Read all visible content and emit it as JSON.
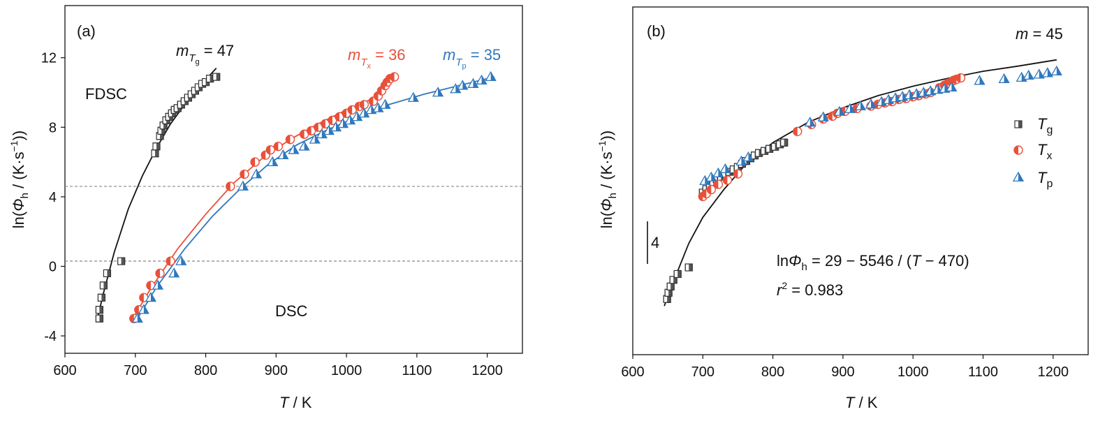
{
  "panels": {
    "a": {
      "label": "(a)",
      "xlabel_sym": "T",
      "xlabel_unit": " / K",
      "ylabel_pre": "ln(",
      "ylabel_sym": "Φ",
      "ylabel_sub": "h",
      "ylabel_unit": " / (K·s",
      "ylabel_exp": "−1",
      "ylabel_close": "))",
      "fdsc": "FDSC",
      "dsc": "DSC",
      "m_g_sym": "m",
      "m_g_sub": "T",
      "m_g_subsub": "g",
      "m_g_val": " = 47",
      "m_x_sym": "m",
      "m_x_sub": "T",
      "m_x_subsub": "x",
      "m_x_val": " = 36",
      "m_p_sym": "m",
      "m_p_sub": "T",
      "m_p_subsub": "p",
      "m_p_val": " = 35"
    },
    "b": {
      "label": "(b)",
      "xlabel_sym": "T",
      "xlabel_unit": " / K",
      "ylabel_pre": "ln(",
      "ylabel_sym": "Φ",
      "ylabel_sub": "h",
      "ylabel_unit": " / (K·s",
      "ylabel_exp": "−1",
      "ylabel_close": "))",
      "m_sym": "m",
      "m_val": " = 45",
      "scale_bar": "4",
      "eq_pre": "ln",
      "eq_sym": "Φ",
      "eq_sub": "h",
      "eq_rest": " = 29 − 5546 / (",
      "eq_t": "T",
      "eq_end": " − 470)",
      "r2_sym": "r",
      "r2_exp": "2",
      "r2_val": " = 0.983",
      "legend": [
        {
          "sym": "T",
          "sub": "g"
        },
        {
          "sym": "T",
          "sub": "x"
        },
        {
          "sym": "T",
          "sub": "p"
        }
      ]
    }
  },
  "colors": {
    "Tg": "#555555",
    "Tx": "#e8503a",
    "Tp": "#2f78bd"
  },
  "chart_data": [
    {
      "type": "scatter",
      "xlabel": "T / K",
      "ylabel": "ln(Φh / (K·s−1))",
      "xlim": [
        600,
        1250
      ],
      "ylim": [
        -5,
        15
      ],
      "xticks": [
        600,
        700,
        800,
        900,
        1000,
        1100,
        1200
      ],
      "yticks": [
        -4,
        0,
        4,
        8,
        12
      ],
      "reference_lines_y": [
        4.6,
        0.3
      ],
      "series": [
        {
          "name": "Tg",
          "points": [
            [
              649,
              -3.0
            ],
            [
              649,
              -2.5
            ],
            [
              652,
              -1.8
            ],
            [
              655,
              -1.1
            ],
            [
              660,
              -0.4
            ],
            [
              680,
              0.3
            ],
            [
              728,
              6.5
            ],
            [
              730,
              6.9
            ],
            [
              735,
              7.5
            ],
            [
              737,
              7.8
            ],
            [
              740,
              8.1
            ],
            [
              744,
              8.4
            ],
            [
              748,
              8.6
            ],
            [
              752,
              8.8
            ],
            [
              756,
              9.0
            ],
            [
              760,
              9.1
            ],
            [
              765,
              9.3
            ],
            [
              770,
              9.5
            ],
            [
              775,
              9.7
            ],
            [
              780,
              9.9
            ],
            [
              785,
              10.1
            ],
            [
              790,
              10.3
            ],
            [
              795,
              10.5
            ],
            [
              800,
              10.6
            ],
            [
              806,
              10.8
            ],
            [
              815,
              10.9
            ]
          ],
          "fit": [
            [
              645,
              -3.2
            ],
            [
              655,
              -1.5
            ],
            [
              670,
              0.8
            ],
            [
              690,
              3.3
            ],
            [
              710,
              5.2
            ],
            [
              730,
              6.8
            ],
            [
              750,
              8.2
            ],
            [
              770,
              9.3
            ],
            [
              790,
              10.3
            ],
            [
              815,
              11.4
            ]
          ]
        },
        {
          "name": "Tx",
          "points": [
            [
              698,
              -3.0
            ],
            [
              705,
              -2.5
            ],
            [
              712,
              -1.8
            ],
            [
              722,
              -1.1
            ],
            [
              735,
              -0.4
            ],
            [
              750,
              0.3
            ],
            [
              835,
              4.6
            ],
            [
              855,
              5.3
            ],
            [
              870,
              6.0
            ],
            [
              885,
              6.4
            ],
            [
              892,
              6.7
            ],
            [
              903,
              6.9
            ],
            [
              920,
              7.3
            ],
            [
              940,
              7.6
            ],
            [
              950,
              7.8
            ],
            [
              960,
              8.0
            ],
            [
              970,
              8.2
            ],
            [
              980,
              8.4
            ],
            [
              990,
              8.6
            ],
            [
              1000,
              8.8
            ],
            [
              1008,
              9.0
            ],
            [
              1018,
              9.2
            ],
            [
              1025,
              9.3
            ],
            [
              1038,
              9.5
            ],
            [
              1045,
              9.8
            ],
            [
              1050,
              10.1
            ],
            [
              1055,
              10.4
            ],
            [
              1058,
              10.6
            ],
            [
              1062,
              10.8
            ],
            [
              1068,
              10.9
            ]
          ],
          "fit": [
            [
              695,
              -3.1
            ],
            [
              720,
              -1.4
            ],
            [
              760,
              1.0
            ],
            [
              800,
              3.0
            ],
            [
              840,
              4.8
            ],
            [
              880,
              6.2
            ],
            [
              920,
              7.3
            ],
            [
              960,
              8.2
            ],
            [
              1000,
              9.0
            ],
            [
              1040,
              9.7
            ],
            [
              1060,
              10.8
            ]
          ]
        },
        {
          "name": "Tp",
          "points": [
            [
              703,
              -3.0
            ],
            [
              712,
              -2.5
            ],
            [
              722,
              -1.8
            ],
            [
              732,
              -1.1
            ],
            [
              755,
              -0.4
            ],
            [
              765,
              0.3
            ],
            [
              853,
              4.6
            ],
            [
              872,
              5.3
            ],
            [
              895,
              6.0
            ],
            [
              910,
              6.4
            ],
            [
              925,
              6.7
            ],
            [
              940,
              6.9
            ],
            [
              955,
              7.3
            ],
            [
              965,
              7.6
            ],
            [
              975,
              7.8
            ],
            [
              985,
              8.0
            ],
            [
              995,
              8.2
            ],
            [
              1005,
              8.4
            ],
            [
              1015,
              8.6
            ],
            [
              1025,
              8.8
            ],
            [
              1035,
              9.0
            ],
            [
              1045,
              9.1
            ],
            [
              1055,
              9.3
            ],
            [
              1095,
              9.7
            ],
            [
              1130,
              10.0
            ],
            [
              1155,
              10.2
            ],
            [
              1165,
              10.4
            ],
            [
              1180,
              10.5
            ],
            [
              1192,
              10.7
            ],
            [
              1205,
              10.9
            ]
          ],
          "fit": [
            [
              700,
              -3.2
            ],
            [
              730,
              -1.2
            ],
            [
              770,
              1.0
            ],
            [
              810,
              2.9
            ],
            [
              850,
              4.5
            ],
            [
              890,
              5.9
            ],
            [
              930,
              7.0
            ],
            [
              970,
              7.8
            ],
            [
              1010,
              8.5
            ],
            [
              1060,
              9.3
            ],
            [
              1110,
              9.9
            ],
            [
              1160,
              10.4
            ],
            [
              1210,
              10.9
            ]
          ]
        }
      ]
    },
    {
      "type": "scatter",
      "xlabel": "T / K",
      "ylabel": "ln(Φh / (K·s−1))",
      "xlim": [
        600,
        1250
      ],
      "ylim": [
        0,
        1
      ],
      "xticks": [
        600,
        700,
        800,
        900,
        1000,
        1100,
        1200
      ],
      "yticks": [],
      "fit_equation": "lnΦh = 29 − 5546 / (T − 470)",
      "r2": 0.983,
      "m": 45,
      "series": [
        {
          "name": "Tg",
          "points": [
            [
              649,
              0.16
            ],
            [
              651,
              0.178
            ],
            [
              654,
              0.196
            ],
            [
              658,
              0.215
            ],
            [
              664,
              0.232
            ],
            [
              680,
              0.251
            ],
            [
              700,
              0.466
            ],
            [
              705,
              0.476
            ],
            [
              710,
              0.488
            ],
            [
              715,
              0.497
            ],
            [
              720,
              0.505
            ],
            [
              726,
              0.512
            ],
            [
              732,
              0.519
            ],
            [
              738,
              0.526
            ],
            [
              744,
              0.533
            ],
            [
              750,
              0.54
            ],
            [
              756,
              0.549
            ],
            [
              762,
              0.557
            ],
            [
              768,
              0.565
            ],
            [
              774,
              0.573
            ],
            [
              780,
              0.58
            ],
            [
              788,
              0.586
            ],
            [
              795,
              0.592
            ],
            [
              803,
              0.598
            ],
            [
              810,
              0.605
            ],
            [
              816,
              0.61
            ]
          ],
          "fit": [
            [
              645,
              0.14
            ],
            [
              660,
              0.22
            ],
            [
              680,
              0.32
            ],
            [
              700,
              0.395
            ],
            [
              730,
              0.475
            ],
            [
              760,
              0.545
            ],
            [
              800,
              0.61
            ],
            [
              850,
              0.668
            ],
            [
              900,
              0.71
            ],
            [
              950,
              0.745
            ],
            [
              1000,
              0.772
            ],
            [
              1050,
              0.795
            ],
            [
              1100,
              0.815
            ],
            [
              1150,
              0.83
            ],
            [
              1205,
              0.848
            ]
          ]
        },
        {
          "name": "Tx",
          "points": [
            [
              700,
              0.455
            ],
            [
              705,
              0.463
            ],
            [
              712,
              0.475
            ],
            [
              722,
              0.49
            ],
            [
              735,
              0.502
            ],
            [
              750,
              0.52
            ],
            [
              835,
              0.642
            ],
            [
              855,
              0.662
            ],
            [
              872,
              0.678
            ],
            [
              885,
              0.686
            ],
            [
              892,
              0.694
            ],
            [
              903,
              0.7
            ],
            [
              920,
              0.708
            ],
            [
              940,
              0.715
            ],
            [
              950,
              0.72
            ],
            [
              960,
              0.724
            ],
            [
              970,
              0.728
            ],
            [
              980,
              0.734
            ],
            [
              990,
              0.737
            ],
            [
              1000,
              0.742
            ],
            [
              1008,
              0.745
            ],
            [
              1018,
              0.75
            ],
            [
              1025,
              0.754
            ],
            [
              1038,
              0.768
            ],
            [
              1045,
              0.775
            ],
            [
              1050,
              0.781
            ],
            [
              1055,
              0.785
            ],
            [
              1058,
              0.789
            ],
            [
              1062,
              0.792
            ],
            [
              1068,
              0.796
            ]
          ],
          "fit": []
        },
        {
          "name": "Tp",
          "points": [
            [
              703,
              0.5
            ],
            [
              712,
              0.51
            ],
            [
              722,
              0.522
            ],
            [
              732,
              0.534
            ],
            [
              755,
              0.556
            ],
            [
              765,
              0.568
            ],
            [
              853,
              0.668
            ],
            [
              872,
              0.683
            ],
            [
              895,
              0.699
            ],
            [
              910,
              0.707
            ],
            [
              925,
              0.715
            ],
            [
              940,
              0.72
            ],
            [
              955,
              0.727
            ],
            [
              965,
              0.733
            ],
            [
              975,
              0.738
            ],
            [
              985,
              0.742
            ],
            [
              995,
              0.747
            ],
            [
              1005,
              0.75
            ],
            [
              1015,
              0.754
            ],
            [
              1025,
              0.758
            ],
            [
              1035,
              0.762
            ],
            [
              1045,
              0.765
            ],
            [
              1055,
              0.769
            ],
            [
              1095,
              0.788
            ],
            [
              1130,
              0.793
            ],
            [
              1155,
              0.797
            ],
            [
              1165,
              0.803
            ],
            [
              1180,
              0.806
            ],
            [
              1192,
              0.81
            ],
            [
              1205,
              0.815
            ]
          ],
          "fit": []
        }
      ]
    }
  ]
}
